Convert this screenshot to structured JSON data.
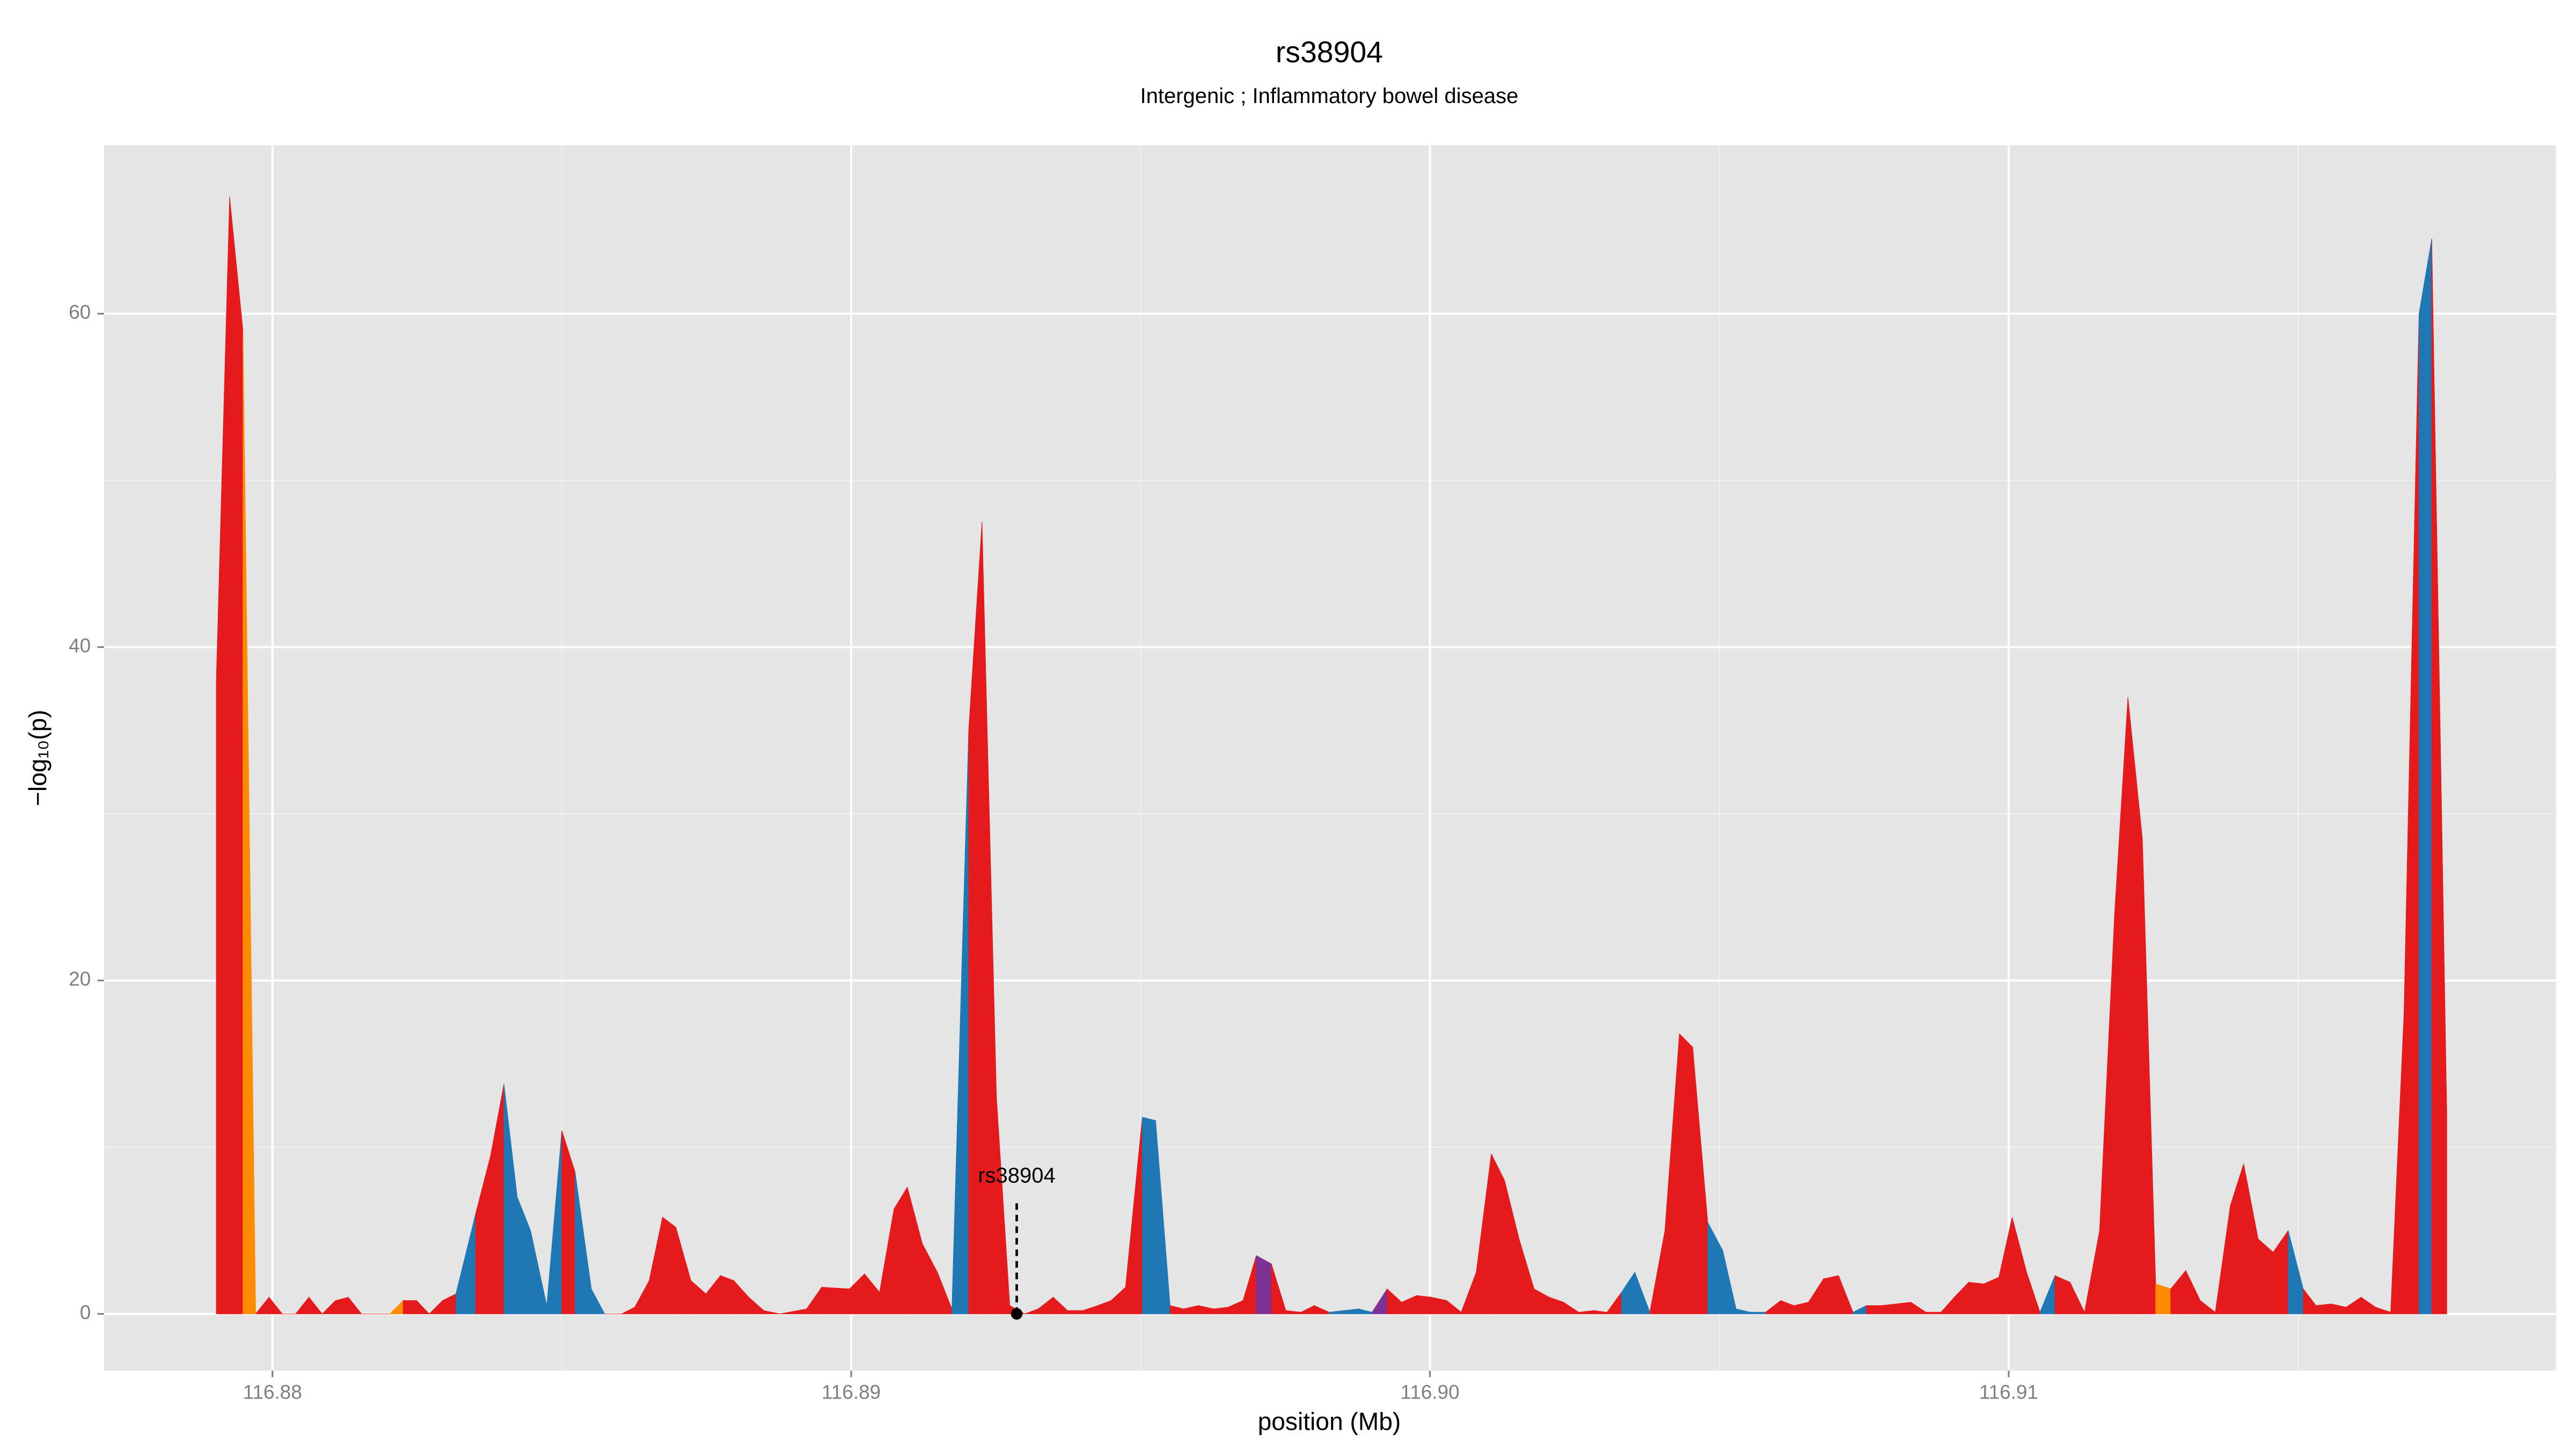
{
  "chart_data": {
    "type": "area",
    "title": "rs38904",
    "subtitle": "Intergenic ; Inflammatory bowel disease",
    "x_label": "position (Mb)",
    "y_label": "−log₁₀(p)",
    "xlim": [
      116.87709,
      116.91946
    ],
    "ylim": [
      -3.4,
      70.1
    ],
    "xticks": [
      116.88,
      116.89,
      {
        "value": 116.9,
        "label": "116.90"
      },
      116.91
    ],
    "yticks": [
      0,
      20,
      40,
      60
    ],
    "xminor": [
      116.885,
      116.895,
      116.905,
      116.915
    ],
    "yminor": [
      10,
      30,
      50
    ],
    "grid": true,
    "annotation": {
      "text": "rs38904",
      "x": 116.89286,
      "y": 0
    },
    "x": [
      116.87903,
      116.87926,
      116.87949,
      116.87971,
      116.87994,
      116.88017,
      116.8804,
      116.88063,
      116.88086,
      116.88109,
      116.88131,
      116.88154,
      116.8818,
      116.88203,
      116.88226,
      116.88249,
      116.88271,
      116.88294,
      116.88317,
      116.88351,
      116.88377,
      116.884,
      116.88423,
      116.88446,
      116.88474,
      116.885,
      116.88523,
      116.88551,
      116.88574,
      116.88603,
      116.88626,
      116.88651,
      116.88674,
      116.88697,
      116.88723,
      116.88749,
      116.88774,
      116.88797,
      116.88823,
      116.88849,
      116.88877,
      116.88923,
      116.88949,
      116.88997,
      116.89023,
      116.89049,
      116.89074,
      116.89097,
      116.89123,
      116.89149,
      116.89174,
      116.89203,
      116.89226,
      116.89251,
      116.89274,
      116.893,
      116.89323,
      116.89349,
      116.89374,
      116.894,
      116.89426,
      116.89449,
      116.89474,
      116.89503,
      116.89526,
      116.89551,
      116.89574,
      116.896,
      116.89626,
      116.89651,
      116.89677,
      116.897,
      116.89726,
      116.89751,
      116.89777,
      116.898,
      116.89826,
      116.89851,
      116.89877,
      116.899,
      116.89926,
      116.89951,
      116.89977,
      116.90003,
      116.90029,
      116.90054,
      116.9008,
      116.90106,
      116.90129,
      116.90154,
      116.9018,
      116.90206,
      116.90231,
      116.90257,
      116.90283,
      116.90306,
      116.90331,
      116.90354,
      116.9038,
      116.90406,
      116.90431,
      116.90454,
      116.9048,
      116.90506,
      116.90529,
      116.90554,
      116.9058,
      116.90606,
      116.90629,
      116.90654,
      116.9068,
      116.90706,
      116.90731,
      116.90754,
      116.9078,
      116.90806,
      116.90831,
      116.90857,
      116.90883,
      116.90906,
      116.90931,
      116.90957,
      116.90983,
      116.91006,
      116.91031,
      116.91054,
      116.9108,
      116.91106,
      116.91131,
      116.91157,
      116.91183,
      116.91206,
      116.91231,
      116.91254,
      116.9128,
      116.91306,
      116.91331,
      116.91357,
      116.91383,
      116.91406,
      116.91431,
      116.91457,
      116.91483,
      116.91509,
      116.91531,
      116.91557,
      116.91583,
      116.91609,
      116.91634,
      116.9166,
      116.91683,
      116.91709,
      116.91731,
      116.91757
    ],
    "values": [
      38,
      67,
      59,
      0,
      1,
      0,
      0,
      1,
      0,
      0.8,
      1,
      0,
      0,
      0,
      0.8,
      0.8,
      0,
      0.8,
      1.2,
      6,
      9.5,
      13.8,
      7,
      5,
      0.5,
      11,
      8.5,
      1.5,
      0,
      0,
      0.4,
      2,
      5.8,
      5.2,
      2,
      1.2,
      2.3,
      2,
      1,
      0.2,
      0,
      0.3,
      1.6,
      1.5,
      2.4,
      1.3,
      6.3,
      7.6,
      4.2,
      2.5,
      0.3,
      35,
      47.5,
      13,
      0.5,
      0,
      0.3,
      1,
      0.2,
      0.2,
      0.5,
      0.8,
      1.6,
      11.8,
      11.6,
      0.5,
      0.3,
      0.5,
      0.3,
      0.4,
      0.8,
      3.5,
      3,
      0.2,
      0.1,
      0.5,
      0.1,
      0.2,
      0.3,
      0.1,
      1.5,
      0.7,
      1.1,
      1,
      0.8,
      0.1,
      2.5,
      9.6,
      8,
      4.5,
      1.5,
      1,
      0.7,
      0.1,
      0.2,
      0.1,
      1.3,
      2.5,
      0.1,
      5,
      16.8,
      16,
      5.5,
      3.8,
      0.3,
      0.1,
      0.1,
      0.8,
      0.5,
      0.7,
      2.1,
      2.3,
      0.1,
      0.5,
      0.5,
      0.6,
      0.7,
      0.1,
      0.1,
      1,
      1.9,
      1.8,
      2.2,
      5.8,
      2.5,
      0.1,
      2.3,
      1.9,
      0.1,
      5,
      24,
      37,
      28.5,
      1.8,
      1.5,
      2.6,
      0.8,
      0.1,
      6.5,
      9,
      4.5,
      3.7,
      5,
      1.5,
      0.5,
      0.6,
      0.4,
      1,
      0.4,
      0.1,
      18,
      60,
      64.5,
      12
    ],
    "colors": [
      "#e41a1c",
      "#e41a1c",
      "#ff8c00",
      "#e41a1c",
      "#e41a1c",
      "#e41a1c",
      "#e41a1c",
      "#e41a1c",
      "#e41a1c",
      "#e41a1c",
      "#e41a1c",
      "#e41a1c",
      "#e41a1c",
      "#ff8c00",
      "#e41a1c",
      "#e41a1c",
      "#e41a1c",
      "#e41a1c",
      "#1f78b4",
      "#e41a1c",
      "#e41a1c",
      "#1f78b4",
      "#1f78b4",
      "#1f78b4",
      "#1f78b4",
      "#e41a1c",
      "#1f78b4",
      "#1f78b4",
      "#e41a1c",
      "#e41a1c",
      "#e41a1c",
      "#e41a1c",
      "#e41a1c",
      "#e41a1c",
      "#e41a1c",
      "#e41a1c",
      "#e41a1c",
      "#e41a1c",
      "#e41a1c",
      "#e41a1c",
      "#e41a1c",
      "#e41a1c",
      "#e41a1c",
      "#e41a1c",
      "#e41a1c",
      "#e41a1c",
      "#e41a1c",
      "#e41a1c",
      "#e41a1c",
      "#e41a1c",
      "#1f78b4",
      "#e41a1c",
      "#e41a1c",
      "#e41a1c",
      "#e41a1c",
      "#e41a1c",
      "#e41a1c",
      "#e41a1c",
      "#e41a1c",
      "#e41a1c",
      "#e41a1c",
      "#e41a1c",
      "#e41a1c",
      "#1f78b4",
      "#1f78b4",
      "#e41a1c",
      "#e41a1c",
      "#e41a1c",
      "#e41a1c",
      "#e41a1c",
      "#e41a1c",
      "#7b3294",
      "#e41a1c",
      "#e41a1c",
      "#e41a1c",
      "#e41a1c",
      "#1f78b4",
      "#1f78b4",
      "#1f78b4",
      "#7b3294",
      "#e41a1c",
      "#e41a1c",
      "#e41a1c",
      "#e41a1c",
      "#e41a1c",
      "#e41a1c",
      "#e41a1c",
      "#e41a1c",
      "#e41a1c",
      "#e41a1c",
      "#e41a1c",
      "#e41a1c",
      "#e41a1c",
      "#e41a1c",
      "#e41a1c",
      "#e41a1c",
      "#1f78b4",
      "#1f78b4",
      "#e41a1c",
      "#e41a1c",
      "#e41a1c",
      "#e41a1c",
      "#1f78b4",
      "#1f78b4",
      "#1f78b4",
      "#1f78b4",
      "#e41a1c",
      "#e41a1c",
      "#e41a1c",
      "#e41a1c",
      "#e41a1c",
      "#e41a1c",
      "#1f78b4",
      "#e41a1c",
      "#e41a1c",
      "#e41a1c",
      "#e41a1c",
      "#e41a1c",
      "#e41a1c",
      "#e41a1c",
      "#e41a1c",
      "#e41a1c",
      "#e41a1c",
      "#e41a1c",
      "#e41a1c",
      "#1f78b4",
      "#e41a1c",
      "#e41a1c",
      "#e41a1c",
      "#e41a1c",
      "#e41a1c",
      "#e41a1c",
      "#e41a1c",
      "#ff8c00",
      "#e41a1c",
      "#e41a1c",
      "#e41a1c",
      "#e41a1c",
      "#e41a1c",
      "#e41a1c",
      "#e41a1c",
      "#e41a1c",
      "#1f78b4",
      "#e41a1c",
      "#e41a1c",
      "#e41a1c",
      "#e41a1c",
      "#e41a1c",
      "#e41a1c",
      "#e41a1c",
      "#e41a1c",
      "#1f78b4",
      "#e41a1c",
      "#e41a1c"
    ]
  }
}
